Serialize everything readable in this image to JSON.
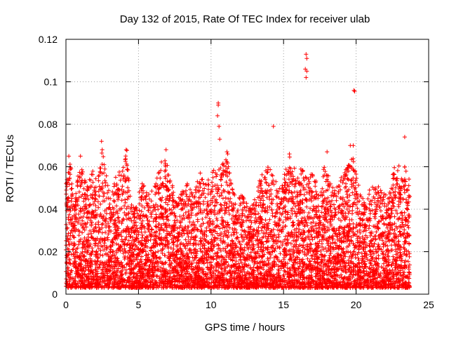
{
  "chart_data": {
    "type": "scatter",
    "title": "Day 132 of 2015, Rate Of TEC Index for receiver ulab",
    "xlabel": "GPS time / hours",
    "ylabel": "ROTI / TECUs",
    "xlim": [
      0,
      25
    ],
    "ylim": [
      0,
      0.12
    ],
    "xticks": [
      0,
      5,
      10,
      15,
      20,
      25
    ],
    "yticks": [
      0,
      0.02,
      0.04,
      0.06,
      0.08,
      0.1,
      0.12
    ],
    "ytick_labels": [
      "0",
      "0.02",
      "0.04",
      "0.06",
      "0.08",
      "0.1",
      "0.12"
    ],
    "xtick_labels": [
      "0",
      "5",
      "10",
      "15",
      "20",
      "25"
    ],
    "grid": true,
    "legend": "none",
    "marker": "plus",
    "color": "#ff0000",
    "data_range_x": [
      0,
      23.7
    ],
    "envelope": [
      [
        0.0,
        0.052
      ],
      [
        0.3,
        0.063
      ],
      [
        0.6,
        0.045
      ],
      [
        0.9,
        0.06
      ],
      [
        1.2,
        0.058
      ],
      [
        1.5,
        0.05
      ],
      [
        1.8,
        0.06
      ],
      [
        2.1,
        0.055
      ],
      [
        2.5,
        0.07
      ],
      [
        2.8,
        0.055
      ],
      [
        3.1,
        0.045
      ],
      [
        3.5,
        0.058
      ],
      [
        3.9,
        0.06
      ],
      [
        4.2,
        0.068
      ],
      [
        4.6,
        0.04
      ],
      [
        4.9,
        0.045
      ],
      [
        5.3,
        0.055
      ],
      [
        5.7,
        0.048
      ],
      [
        6.1,
        0.05
      ],
      [
        6.5,
        0.063
      ],
      [
        6.8,
        0.066
      ],
      [
        7.2,
        0.056
      ],
      [
        7.6,
        0.043
      ],
      [
        8.0,
        0.05
      ],
      [
        8.4,
        0.053
      ],
      [
        8.8,
        0.045
      ],
      [
        9.2,
        0.058
      ],
      [
        9.6,
        0.052
      ],
      [
        10.0,
        0.056
      ],
      [
        10.4,
        0.062
      ],
      [
        10.7,
        0.06
      ],
      [
        11.0,
        0.07
      ],
      [
        11.4,
        0.052
      ],
      [
        11.8,
        0.045
      ],
      [
        12.2,
        0.048
      ],
      [
        12.6,
        0.04
      ],
      [
        13.0,
        0.046
      ],
      [
        13.4,
        0.055
      ],
      [
        13.8,
        0.06
      ],
      [
        14.2,
        0.062
      ],
      [
        14.6,
        0.05
      ],
      [
        15.0,
        0.055
      ],
      [
        15.4,
        0.065
      ],
      [
        15.8,
        0.06
      ],
      [
        16.2,
        0.06
      ],
      [
        16.6,
        0.055
      ],
      [
        17.0,
        0.058
      ],
      [
        17.4,
        0.05
      ],
      [
        17.8,
        0.06
      ],
      [
        18.2,
        0.058
      ],
      [
        18.6,
        0.05
      ],
      [
        19.0,
        0.056
      ],
      [
        19.4,
        0.06
      ],
      [
        19.8,
        0.065
      ],
      [
        20.2,
        0.05
      ],
      [
        20.6,
        0.045
      ],
      [
        21.0,
        0.05
      ],
      [
        21.4,
        0.052
      ],
      [
        21.8,
        0.05
      ],
      [
        22.2,
        0.045
      ],
      [
        22.6,
        0.06
      ],
      [
        23.0,
        0.062
      ],
      [
        23.4,
        0.06
      ],
      [
        23.7,
        0.055
      ]
    ],
    "notable_points": [
      {
        "x": 10.5,
        "y": 0.09
      },
      {
        "x": 10.5,
        "y": 0.089
      },
      {
        "x": 10.45,
        "y": 0.084
      },
      {
        "x": 10.55,
        "y": 0.079
      },
      {
        "x": 10.6,
        "y": 0.073
      },
      {
        "x": 11.1,
        "y": 0.067
      },
      {
        "x": 11.15,
        "y": 0.066
      },
      {
        "x": 14.3,
        "y": 0.079
      },
      {
        "x": 16.55,
        "y": 0.113
      },
      {
        "x": 16.6,
        "y": 0.111
      },
      {
        "x": 16.5,
        "y": 0.106
      },
      {
        "x": 16.6,
        "y": 0.105
      },
      {
        "x": 16.55,
        "y": 0.102
      },
      {
        "x": 19.85,
        "y": 0.096
      },
      {
        "x": 19.9,
        "y": 0.0955
      },
      {
        "x": 19.8,
        "y": 0.07
      },
      {
        "x": 2.45,
        "y": 0.072
      },
      {
        "x": 2.5,
        "y": 0.068
      },
      {
        "x": 23.35,
        "y": 0.074
      },
      {
        "x": 19.6,
        "y": 0.07
      },
      {
        "x": 4.15,
        "y": 0.068
      },
      {
        "x": 6.9,
        "y": 0.068
      },
      {
        "x": 18.0,
        "y": 0.067
      },
      {
        "x": 15.4,
        "y": 0.066
      },
      {
        "x": 0.2,
        "y": 0.065
      },
      {
        "x": 1.0,
        "y": 0.065
      }
    ]
  }
}
